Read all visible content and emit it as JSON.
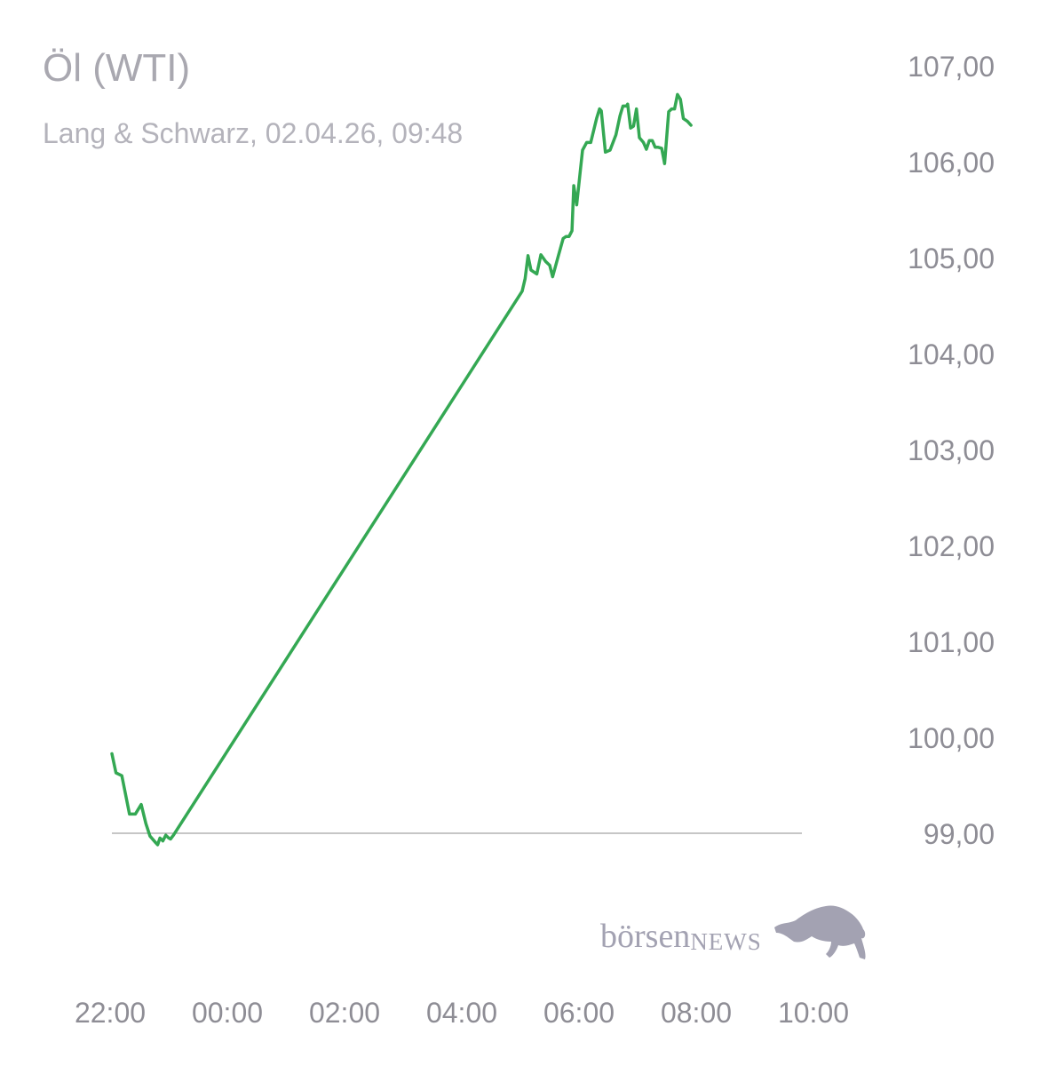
{
  "header": {
    "title": "Öl (WTI)",
    "subtitle": "Lang & Schwarz, 02.04.26, 09:48"
  },
  "brand": {
    "name": "börsen",
    "suffix": "NEWS"
  },
  "colors": {
    "line": "#34a853",
    "reference": "#8c8c8c",
    "text": "#8e8d95"
  },
  "chart_data": {
    "type": "line",
    "title": "Öl (WTI)",
    "subtitle": "Lang & Schwarz, 02.04.26, 09:48",
    "x_unit": "time (hours)",
    "xlim": [
      22.0,
      34.0
    ],
    "ylim": [
      98.0,
      107.0
    ],
    "y_ticks": [
      107,
      106,
      105,
      104,
      103,
      102,
      101,
      100,
      99
    ],
    "y_tick_labels": [
      "107,00",
      "106,00",
      "105,00",
      "104,00",
      "103,00",
      "102,00",
      "101,00",
      "100,00",
      "99,00"
    ],
    "x_ticks": [
      22,
      24,
      26,
      28,
      30,
      32,
      34
    ],
    "x_tick_labels": [
      "22:00",
      "00:00",
      "02:00",
      "04:00",
      "06:00",
      "08:00",
      "10:00"
    ],
    "reference_line": 99.0,
    "grid": false,
    "series": [
      {
        "points": [
          [
            22.0,
            99.83
          ],
          [
            22.07,
            99.63
          ],
          [
            22.17,
            99.6
          ],
          [
            22.3,
            99.2
          ],
          [
            22.4,
            99.2
          ],
          [
            22.5,
            99.3
          ],
          [
            22.58,
            99.1
          ],
          [
            22.65,
            98.97
          ],
          [
            22.75,
            98.9
          ],
          [
            22.78,
            98.88
          ],
          [
            22.82,
            98.95
          ],
          [
            22.87,
            98.92
          ],
          [
            22.92,
            98.98
          ],
          [
            22.97,
            98.95
          ],
          [
            23.0,
            98.94
          ],
          [
            23.05,
            98.98
          ],
          [
            29.0,
            104.65
          ],
          [
            29.05,
            104.78
          ],
          [
            29.1,
            105.02
          ],
          [
            29.15,
            104.87
          ],
          [
            29.25,
            104.83
          ],
          [
            29.32,
            105.03
          ],
          [
            29.4,
            104.96
          ],
          [
            29.47,
            104.92
          ],
          [
            29.52,
            104.8
          ],
          [
            29.6,
            104.98
          ],
          [
            29.7,
            105.2
          ],
          [
            29.75,
            105.22
          ],
          [
            29.8,
            105.22
          ],
          [
            29.85,
            105.28
          ],
          [
            29.88,
            105.75
          ],
          [
            29.93,
            105.55
          ],
          [
            30.0,
            105.95
          ],
          [
            30.03,
            106.12
          ],
          [
            30.1,
            106.2
          ],
          [
            30.17,
            106.2
          ],
          [
            30.27,
            106.45
          ],
          [
            30.32,
            106.55
          ],
          [
            30.35,
            106.53
          ],
          [
            30.42,
            106.1
          ],
          [
            30.5,
            106.12
          ],
          [
            30.55,
            106.2
          ],
          [
            30.6,
            106.28
          ],
          [
            30.67,
            106.48
          ],
          [
            30.72,
            106.58
          ],
          [
            30.78,
            106.58
          ],
          [
            30.8,
            106.6
          ],
          [
            30.85,
            106.35
          ],
          [
            30.9,
            106.37
          ],
          [
            30.95,
            106.55
          ],
          [
            31.0,
            106.25
          ],
          [
            31.07,
            106.2
          ],
          [
            31.12,
            106.13
          ],
          [
            31.17,
            106.22
          ],
          [
            31.22,
            106.22
          ],
          [
            31.27,
            106.15
          ],
          [
            31.32,
            106.15
          ],
          [
            31.38,
            106.14
          ],
          [
            31.43,
            105.98
          ],
          [
            31.5,
            106.52
          ],
          [
            31.55,
            106.55
          ],
          [
            31.6,
            106.55
          ],
          [
            31.65,
            106.7
          ],
          [
            31.7,
            106.65
          ],
          [
            31.75,
            106.45
          ],
          [
            31.82,
            106.42
          ],
          [
            31.88,
            106.38
          ]
        ]
      }
    ]
  }
}
